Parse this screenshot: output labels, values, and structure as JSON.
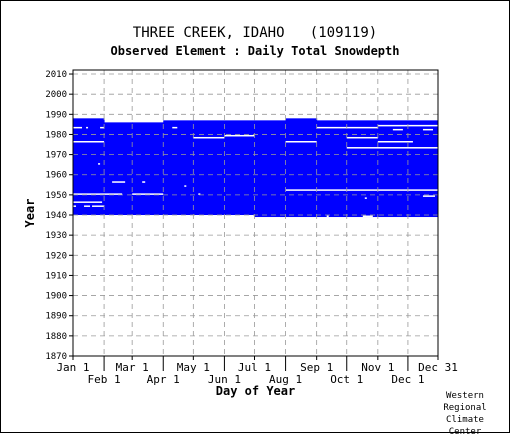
{
  "chart_data": {
    "type": "heatmap",
    "title": "THREE CREEK, IDAHO   (109119)",
    "subtitle": "Observed Element : Daily Total Snowdepth",
    "xlabel": "Day of Year",
    "ylabel": "Year",
    "ylim": [
      1870,
      2012
    ],
    "yticks": [
      1870,
      1880,
      1890,
      1900,
      1910,
      1920,
      1930,
      1940,
      1950,
      1960,
      1970,
      1980,
      1990,
      2000,
      2010
    ],
    "xlim": [
      1,
      365
    ],
    "month_ticks": [
      {
        "label": "Jan 1",
        "day": 1,
        "row": 1
      },
      {
        "label": "Feb 1",
        "day": 32,
        "row": 2
      },
      {
        "label": "Mar 1",
        "day": 60,
        "row": 1
      },
      {
        "label": "Apr 1",
        "day": 91,
        "row": 2
      },
      {
        "label": "May 1",
        "day": 121,
        "row": 1
      },
      {
        "label": "Jun 1",
        "day": 152,
        "row": 2
      },
      {
        "label": "Jul 1",
        "day": 182,
        "row": 1
      },
      {
        "label": "Aug 1",
        "day": 213,
        "row": 2
      },
      {
        "label": "Sep 1",
        "day": 244,
        "row": 1
      },
      {
        "label": "Oct 1",
        "day": 274,
        "row": 2
      },
      {
        "label": "Nov 1",
        "day": 305,
        "row": 1
      },
      {
        "label": "Dec 1",
        "day": 335,
        "row": 2
      },
      {
        "label": "Dec 31",
        "day": 365,
        "row": 1
      }
    ],
    "grid": true,
    "data_color": "#0000ff",
    "coverage": [
      {
        "day_start": 1,
        "day_end": 32,
        "year_start": 1940,
        "year_end": 1987
      },
      {
        "day_start": 32,
        "day_end": 60,
        "year_start": 1940,
        "year_end": 1985
      },
      {
        "day_start": 60,
        "day_end": 91,
        "year_start": 1940,
        "year_end": 1985
      },
      {
        "day_start": 91,
        "day_end": 121,
        "year_start": 1940,
        "year_end": 1986
      },
      {
        "day_start": 121,
        "day_end": 182,
        "year_start": 1940,
        "year_end": 1986
      },
      {
        "day_start": 182,
        "day_end": 213,
        "year_start": 1939,
        "year_end": 1986
      },
      {
        "day_start": 213,
        "day_end": 244,
        "year_start": 1939,
        "year_end": 1987
      },
      {
        "day_start": 244,
        "day_end": 305,
        "year_start": 1939,
        "year_end": 1986
      },
      {
        "day_start": 305,
        "day_end": 365,
        "year_start": 1939,
        "year_end": 1986
      }
    ],
    "gaps": [
      {
        "year": 1983,
        "day_start": 1,
        "day_end": 10
      },
      {
        "year": 1983,
        "day_start": 14,
        "day_end": 16
      },
      {
        "year": 1983,
        "day_start": 28,
        "day_end": 32
      },
      {
        "year": 1983,
        "day_start": 100,
        "day_end": 105
      },
      {
        "year": 1983,
        "day_start": 244,
        "day_end": 305
      },
      {
        "year": 1984,
        "day_start": 305,
        "day_end": 365
      },
      {
        "year": 1982,
        "day_start": 320,
        "day_end": 330
      },
      {
        "year": 1982,
        "day_start": 350,
        "day_end": 360
      },
      {
        "year": 1979,
        "day_start": 152,
        "day_end": 182
      },
      {
        "year": 1978,
        "day_start": 121,
        "day_end": 152
      },
      {
        "year": 1978,
        "day_start": 274,
        "day_end": 305
      },
      {
        "year": 1976,
        "day_start": 1,
        "day_end": 32
      },
      {
        "year": 1976,
        "day_start": 213,
        "day_end": 244
      },
      {
        "year": 1976,
        "day_start": 305,
        "day_end": 340
      },
      {
        "year": 1973,
        "day_start": 274,
        "day_end": 365
      },
      {
        "year": 1965,
        "day_start": 26,
        "day_end": 28
      },
      {
        "year": 1956,
        "day_start": 40,
        "day_end": 53
      },
      {
        "year": 1956,
        "day_start": 70,
        "day_end": 73
      },
      {
        "year": 1954,
        "day_start": 112,
        "day_end": 114
      },
      {
        "year": 1952,
        "day_start": 213,
        "day_end": 365
      },
      {
        "year": 1950,
        "day_start": 1,
        "day_end": 50
      },
      {
        "year": 1950,
        "day_start": 60,
        "day_end": 91
      },
      {
        "year": 1950,
        "day_start": 126,
        "day_end": 128
      },
      {
        "year": 1949,
        "day_start": 350,
        "day_end": 362
      },
      {
        "year": 1948,
        "day_start": 292,
        "day_end": 294
      },
      {
        "year": 1946,
        "day_start": 1,
        "day_end": 30
      },
      {
        "year": 1944,
        "day_start": 1,
        "day_end": 4
      },
      {
        "year": 1944,
        "day_start": 12,
        "day_end": 18
      },
      {
        "year": 1944,
        "day_start": 20,
        "day_end": 32
      },
      {
        "year": 1939,
        "day_start": 254,
        "day_end": 256
      },
      {
        "year": 1939,
        "day_start": 290,
        "day_end": 300
      }
    ]
  },
  "footer": {
    "credit_lines": [
      "Western",
      "Regional",
      "Climate",
      "Center"
    ]
  }
}
